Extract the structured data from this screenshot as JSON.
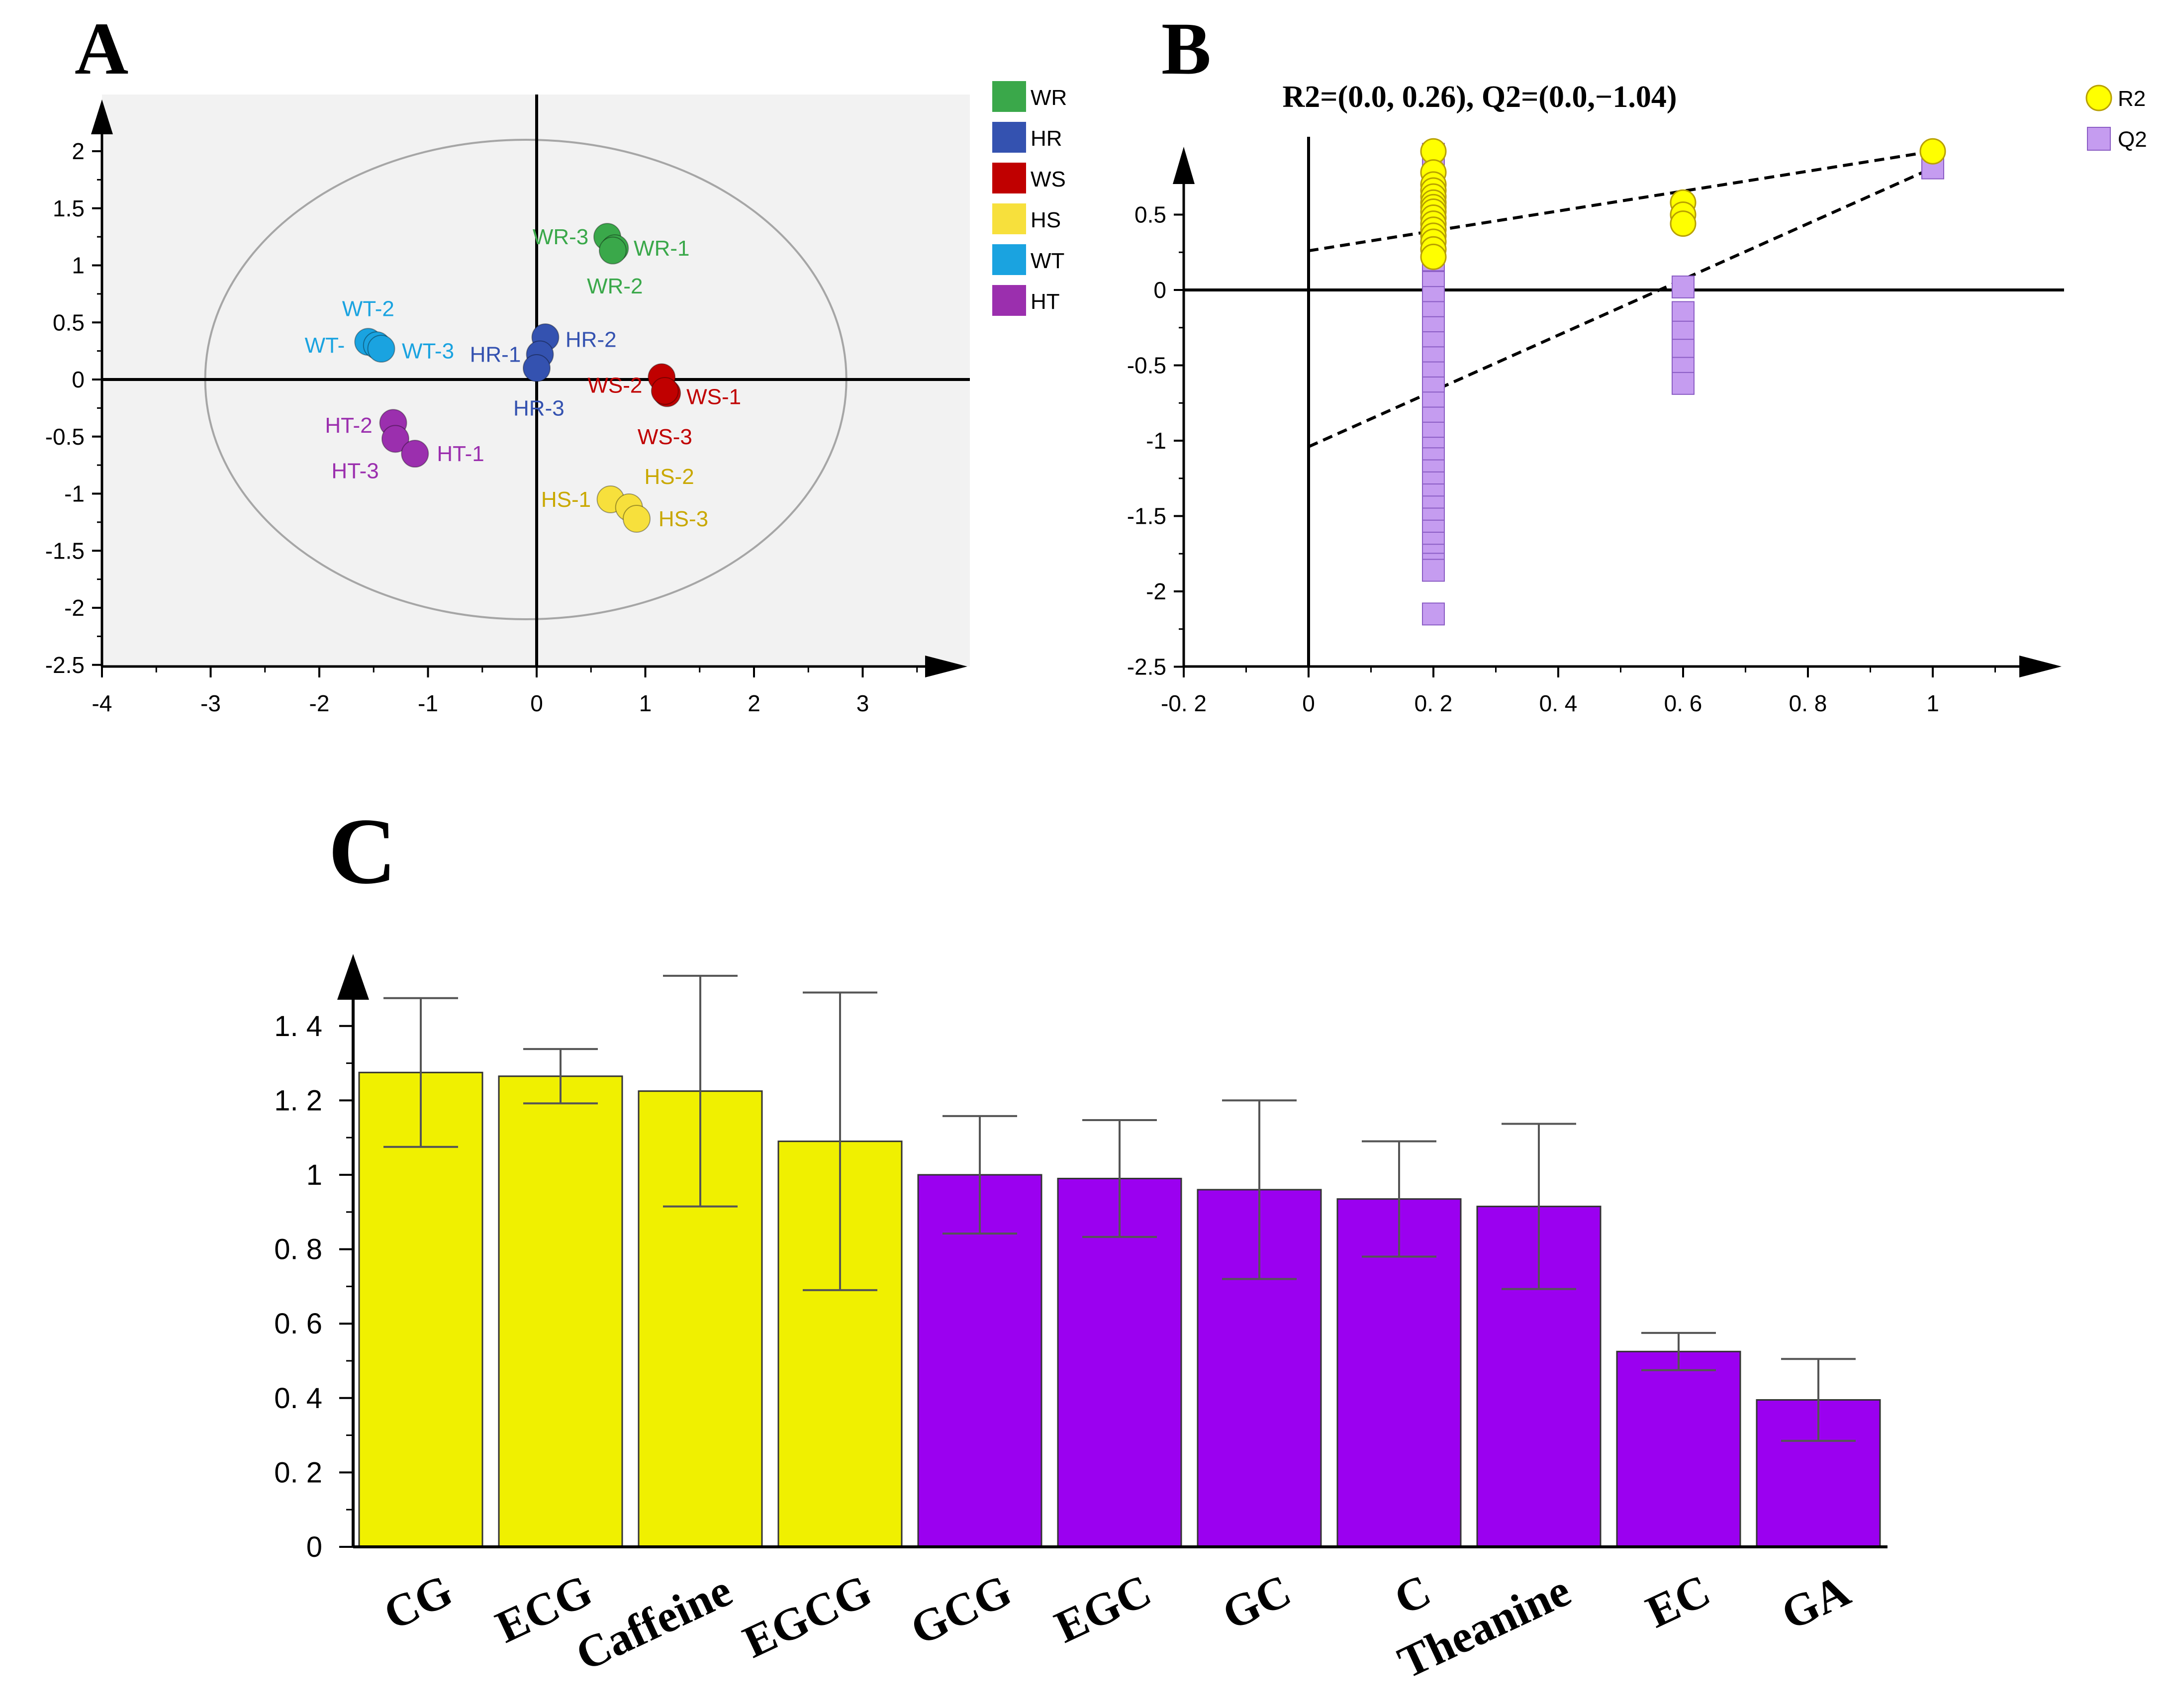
{
  "panel_labels": {
    "a": "A",
    "b": "B",
    "c": "C"
  },
  "chart_data": [
    {
      "type": "scatter",
      "id": "A",
      "xlim": [
        -4,
        4
      ],
      "ylim": [
        -2.5,
        2.3
      ],
      "xticks": [
        "-4",
        "-3",
        "-2",
        "-1",
        "0",
        "1",
        "2",
        "3"
      ],
      "xtick_values": [
        -4,
        -3,
        -2,
        -1,
        0,
        1,
        2,
        3
      ],
      "yticks": [
        "2",
        "1.5",
        "1",
        "0.5",
        "0",
        "-0.5",
        "-1",
        "-1.5",
        "-2",
        "-2.5"
      ],
      "ytick_values": [
        2,
        1.5,
        1,
        0.5,
        0,
        -0.5,
        -1,
        -1.5,
        -2,
        -2.5
      ],
      "ellipse": {
        "cx": -0.1,
        "cy": 0.0,
        "rx": 2.95,
        "ry": 2.1
      },
      "grid": false,
      "legend_position": "right",
      "series": [
        {
          "name": "WR",
          "color": "#3aa84a",
          "points": [
            {
              "label": "WR-3",
              "x": 0.65,
              "y": 1.25,
              "lx": 0.22,
              "ly": 1.25,
              "anchor": "middle"
            },
            {
              "label": "WR-1",
              "x": 0.72,
              "y": 1.15,
              "lx": 1.15,
              "ly": 1.15,
              "anchor": "middle"
            },
            {
              "label": "WR-2",
              "x": 0.7,
              "y": 1.13,
              "lx": 0.72,
              "ly": 0.82,
              "anchor": "middle"
            }
          ]
        },
        {
          "name": "HR",
          "color": "#3452b0",
          "points": [
            {
              "label": "HR-2",
              "x": 0.08,
              "y": 0.37,
              "lx": 0.5,
              "ly": 0.35,
              "anchor": "middle"
            },
            {
              "label": "HR-1",
              "x": 0.03,
              "y": 0.22,
              "lx": -0.38,
              "ly": 0.22,
              "anchor": "middle"
            },
            {
              "label": "HR-3",
              "x": 0.0,
              "y": 0.1,
              "lx": 0.02,
              "ly": -0.25,
              "anchor": "middle"
            }
          ]
        },
        {
          "name": "WS",
          "color": "#c00000",
          "points": [
            {
              "label": "WS-2",
              "x": 1.15,
              "y": 0.02,
              "lx": 0.72,
              "ly": -0.05,
              "anchor": "middle"
            },
            {
              "label": "WS-1",
              "x": 1.2,
              "y": -0.12,
              "lx": 1.63,
              "ly": -0.15,
              "anchor": "middle"
            },
            {
              "label": "WS-3",
              "x": 1.18,
              "y": -0.1,
              "lx": 1.18,
              "ly": -0.5,
              "anchor": "middle"
            }
          ]
        },
        {
          "name": "HS",
          "color": "#f7e03c",
          "points": [
            {
              "label": "HS-1",
              "x": 0.68,
              "y": -1.05,
              "lx": 0.27,
              "ly": -1.05,
              "anchor": "middle"
            },
            {
              "label": "HS-2",
              "x": 0.85,
              "y": -1.12,
              "lx": 1.22,
              "ly": -0.85,
              "anchor": "middle"
            },
            {
              "label": "HS-3",
              "x": 0.92,
              "y": -1.22,
              "lx": 1.35,
              "ly": -1.22,
              "anchor": "middle"
            }
          ]
        },
        {
          "name": "WT",
          "color": "#1aa3e0",
          "points": [
            {
              "label": "WT-2",
              "x": -1.55,
              "y": 0.33,
              "lx": -1.55,
              "ly": 0.62,
              "anchor": "middle"
            },
            {
              "label": "WT-",
              "x": -1.47,
              "y": 0.3,
              "lx": -1.95,
              "ly": 0.3,
              "anchor": "middle"
            },
            {
              "label": "WT-3",
              "x": -1.43,
              "y": 0.27,
              "lx": -1.0,
              "ly": 0.25,
              "anchor": "middle"
            }
          ]
        },
        {
          "name": "HT",
          "color": "#9b2fae",
          "points": [
            {
              "label": "HT-2",
              "x": -1.32,
              "y": -0.38,
              "lx": -1.73,
              "ly": -0.4,
              "anchor": "middle"
            },
            {
              "label": "HT-3",
              "x": -1.3,
              "y": -0.52,
              "lx": -1.67,
              "ly": -0.8,
              "anchor": "middle"
            },
            {
              "label": "HT-1",
              "x": -1.12,
              "y": -0.65,
              "lx": -0.7,
              "ly": -0.65,
              "anchor": "middle"
            }
          ]
        }
      ]
    },
    {
      "type": "scatter",
      "id": "B",
      "title": "R2=(0.0, 0.26), Q2=(0.0,−1.04)",
      "xlim": [
        -0.2,
        1.2
      ],
      "ylim": [
        -2.5,
        0.95
      ],
      "xticks": [
        "-0. 2",
        "0",
        "0. 2",
        "0. 4",
        "0. 6",
        "0. 8",
        "1"
      ],
      "xtick_values": [
        -0.2,
        0,
        0.2,
        0.4,
        0.6,
        0.8,
        1
      ],
      "yticks": [
        "0.5",
        "0",
        "-0.5",
        "-1",
        "-1.5",
        "-2",
        "-2.5"
      ],
      "ytick_values": [
        0.5,
        0,
        -0.5,
        -1,
        -1.5,
        -2,
        -2.5
      ],
      "grid": false,
      "legend_position": "top-right",
      "series": [
        {
          "name": "R2",
          "color": "#ffff00",
          "marker": "circle",
          "x": [
            1.0,
            0.6,
            0.6,
            0.6,
            0.2,
            0.2,
            0.2,
            0.2,
            0.2,
            0.2,
            0.2,
            0.2,
            0.2,
            0.2,
            0.2,
            0.2,
            0.2,
            0.2,
            0.2
          ],
          "y": [
            0.92,
            0.58,
            0.5,
            0.44,
            0.92,
            0.78,
            0.7,
            0.66,
            0.62,
            0.58,
            0.55,
            0.52,
            0.48,
            0.44,
            0.4,
            0.36,
            0.32,
            0.27,
            0.22
          ]
        },
        {
          "name": "Q2",
          "color": "#c59cf0",
          "marker": "square",
          "x": [
            1.0,
            0.6,
            0.6,
            0.6,
            0.6,
            0.6,
            0.6,
            0.2,
            0.2,
            0.2,
            0.2,
            0.2,
            0.2,
            0.2,
            0.2,
            0.2,
            0.2,
            0.2,
            0.2,
            0.2,
            0.2,
            0.2,
            0.2,
            0.2,
            0.2,
            0.2,
            0.2,
            0.2,
            0.2,
            0.2,
            0.2,
            0.2,
            0.2,
            0.2
          ],
          "y": [
            0.81,
            0.02,
            -0.15,
            -0.28,
            -0.4,
            -0.52,
            -0.62,
            0.9,
            0.35,
            0.2,
            0.05,
            -0.05,
            -0.15,
            -0.25,
            -0.35,
            -0.45,
            -0.55,
            -0.65,
            -0.75,
            -0.85,
            -0.95,
            -1.05,
            -1.12,
            -1.2,
            -1.28,
            -1.36,
            -1.44,
            -1.52,
            -1.6,
            -1.68,
            -1.76,
            -1.82,
            -1.86,
            -2.15
          ]
        }
      ],
      "regression_lines": [
        {
          "name": "R2",
          "x": [
            0,
            1.0
          ],
          "y": [
            0.26,
            0.92
          ]
        },
        {
          "name": "Q2",
          "x": [
            0,
            1.0
          ],
          "y": [
            -1.04,
            0.81
          ]
        }
      ]
    },
    {
      "type": "bar",
      "id": "C",
      "categories": [
        "CG",
        "ECG",
        "Caffeine",
        "EGCG",
        "GCG",
        "EGC",
        "GC",
        "C",
        "Theanine",
        "EC",
        "GA"
      ],
      "values": [
        1.275,
        1.265,
        1.225,
        1.09,
        1.0,
        0.99,
        0.96,
        0.935,
        0.915,
        0.525,
        0.395
      ],
      "errors": [
        0.2,
        0.073,
        0.31,
        0.4,
        0.158,
        0.157,
        0.24,
        0.155,
        0.222,
        0.05,
        0.11
      ],
      "colors": [
        "#f0f000",
        "#f0f000",
        "#f0f000",
        "#f0f000",
        "#9b00f0",
        "#9b00f0",
        "#9b00f0",
        "#9b00f0",
        "#9b00f0",
        "#9b00f0",
        "#9b00f0"
      ],
      "ylim": [
        0,
        1.5
      ],
      "yticks": [
        "1. 4",
        "1. 2",
        "1",
        "0. 8",
        "0. 6",
        "0. 4",
        "0. 2",
        "0"
      ],
      "ytick_values": [
        1.4,
        1.2,
        1.0,
        0.8,
        0.6,
        0.4,
        0.2,
        0
      ],
      "grid": false
    }
  ]
}
